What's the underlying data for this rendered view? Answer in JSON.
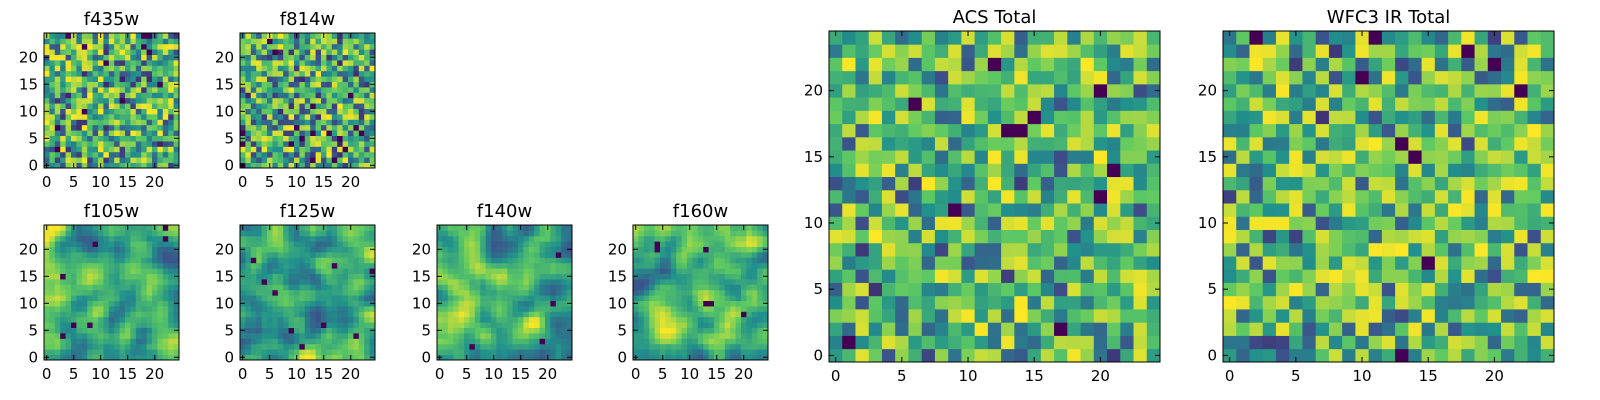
{
  "colormap": [
    "#440154",
    "#3b528b",
    "#21918c",
    "#5ec962",
    "#fde725"
  ],
  "chart_data": [
    {
      "type": "heatmap",
      "title": "f435w",
      "grid_size": 25,
      "xlim": [
        -0.5,
        24.5
      ],
      "ylim": [
        -0.5,
        24.5
      ],
      "xticks": [
        "0",
        "5",
        "10",
        "15",
        "20"
      ],
      "yticks": [
        "0",
        "5",
        "10",
        "15",
        "20"
      ],
      "pattern": "noise",
      "seed": 11,
      "grid": false
    },
    {
      "type": "heatmap",
      "title": "f814w",
      "grid_size": 25,
      "xlim": [
        -0.5,
        24.5
      ],
      "ylim": [
        -0.5,
        24.5
      ],
      "xticks": [
        "0",
        "5",
        "10",
        "15",
        "20"
      ],
      "yticks": [
        "0",
        "5",
        "10",
        "15",
        "20"
      ],
      "pattern": "noise",
      "seed": 23,
      "grid": false
    },
    {
      "type": "heatmap",
      "title": "f105w",
      "grid_size": 25,
      "xlim": [
        -0.5,
        24.5
      ],
      "ylim": [
        -0.5,
        24.5
      ],
      "xticks": [
        "0",
        "5",
        "10",
        "15",
        "20"
      ],
      "yticks": [
        "0",
        "5",
        "10",
        "15",
        "20"
      ],
      "pattern": "smooth",
      "seed": 37,
      "grid": false
    },
    {
      "type": "heatmap",
      "title": "f125w",
      "grid_size": 25,
      "xlim": [
        -0.5,
        24.5
      ],
      "ylim": [
        -0.5,
        24.5
      ],
      "xticks": [
        "0",
        "5",
        "10",
        "15",
        "20"
      ],
      "yticks": [
        "0",
        "5",
        "10",
        "15",
        "20"
      ],
      "pattern": "smooth",
      "seed": 41,
      "grid": false
    },
    {
      "type": "heatmap",
      "title": "f140w",
      "grid_size": 25,
      "xlim": [
        -0.5,
        24.5
      ],
      "ylim": [
        -0.5,
        24.5
      ],
      "xticks": [
        "0",
        "5",
        "10",
        "15",
        "20"
      ],
      "yticks": [
        "0",
        "5",
        "10",
        "15",
        "20"
      ],
      "pattern": "smooth",
      "seed": 53,
      "grid": false
    },
    {
      "type": "heatmap",
      "title": "f160w",
      "grid_size": 25,
      "xlim": [
        -0.5,
        24.5
      ],
      "ylim": [
        -0.5,
        24.5
      ],
      "xticks": [
        "0",
        "5",
        "10",
        "15",
        "20"
      ],
      "yticks": [
        "0",
        "5",
        "10",
        "15",
        "20"
      ],
      "pattern": "smooth",
      "seed": 67,
      "grid": false
    },
    {
      "type": "heatmap",
      "title": "ACS Total",
      "grid_size": 25,
      "xlim": [
        -0.5,
        24.5
      ],
      "ylim": [
        -0.5,
        24.5
      ],
      "xticks": [
        "0",
        "5",
        "10",
        "15",
        "20"
      ],
      "yticks": [
        "0",
        "5",
        "10",
        "15",
        "20"
      ],
      "pattern": "blocky",
      "seed": 79,
      "grid": false
    },
    {
      "type": "heatmap",
      "title": "WFC3 IR Total",
      "grid_size": 25,
      "xlim": [
        -0.5,
        24.5
      ],
      "ylim": [
        -0.5,
        24.5
      ],
      "xticks": [
        "0",
        "5",
        "10",
        "15",
        "20"
      ],
      "yticks": [
        "0",
        "5",
        "10",
        "15",
        "20"
      ],
      "pattern": "blocky",
      "seed": 97,
      "grid": false
    }
  ]
}
